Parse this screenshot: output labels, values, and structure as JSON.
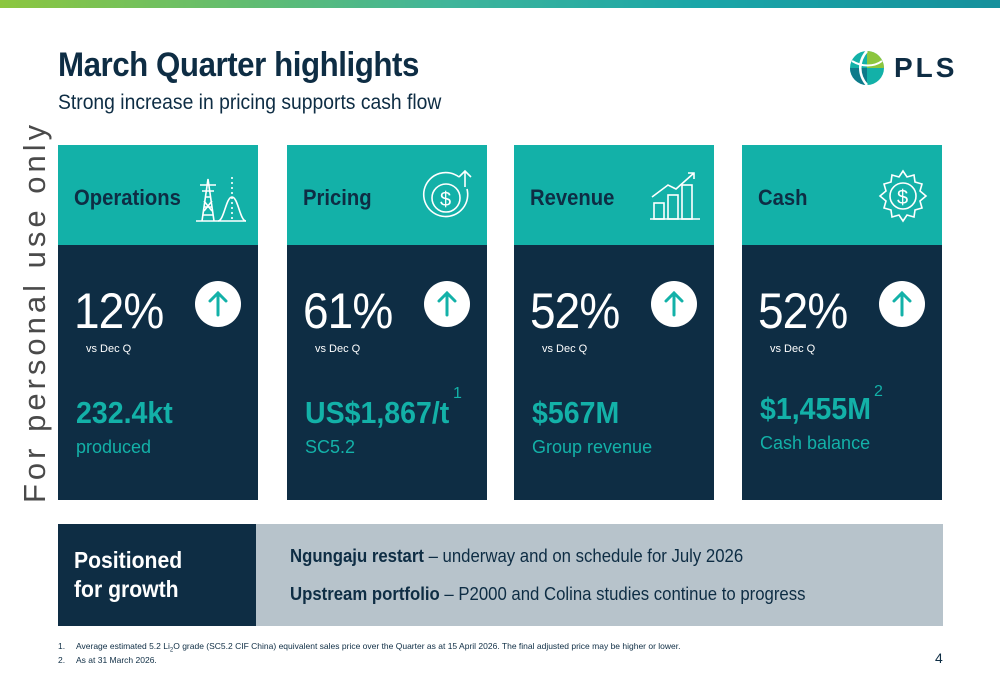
{
  "header": {
    "title": "March Quarter highlights",
    "subtitle": "Strong increase in pricing supports cash flow",
    "logo_text": "PLS"
  },
  "watermark": "For personal use only",
  "cards": [
    {
      "title": "Operations",
      "icon": "pylon-chart-icon",
      "pct": "12%",
      "vs": "vs Dec Q",
      "value": "232.4kt",
      "label": "produced",
      "footnote": ""
    },
    {
      "title": "Pricing",
      "icon": "dollar-up-icon",
      "pct": "61%",
      "vs": "vs Dec Q",
      "value": "US$1,867/t",
      "label": "SC5.2",
      "footnote": "1"
    },
    {
      "title": "Revenue",
      "icon": "bar-chart-icon",
      "pct": "52%",
      "vs": "vs Dec Q",
      "value": "$567M",
      "label": "Group revenue",
      "footnote": ""
    },
    {
      "title": "Cash",
      "icon": "dollar-gear-icon",
      "pct": "52%",
      "vs": "vs Dec Q",
      "value": "$1,455M",
      "label": "Cash balance",
      "footnote": "2"
    }
  ],
  "growth": {
    "title_line1": "Positioned",
    "title_line2": "for growth",
    "items": [
      {
        "bold": "Ngungaju restart",
        "text": " – underway and on schedule for July 2026"
      },
      {
        "bold": "Upstream portfolio",
        "text": " – P2000 and Colina studies continue to progress"
      }
    ]
  },
  "footnotes": [
    {
      "num": "1.",
      "pre": "Average estimated 5.2 Li",
      "sub": "2",
      "post": "O grade (SC5.2 CIF China) equivalent sales price over the Quarter as at 15 April 2026. The final adjusted price may be higher or lower."
    },
    {
      "num": "2.",
      "pre": "As at 31 March 2026.",
      "sub": "",
      "post": ""
    }
  ],
  "page_number": "4",
  "colors": {
    "navy": "#0e2d44",
    "teal": "#13b1a8",
    "grey": "#b7c3cb"
  }
}
